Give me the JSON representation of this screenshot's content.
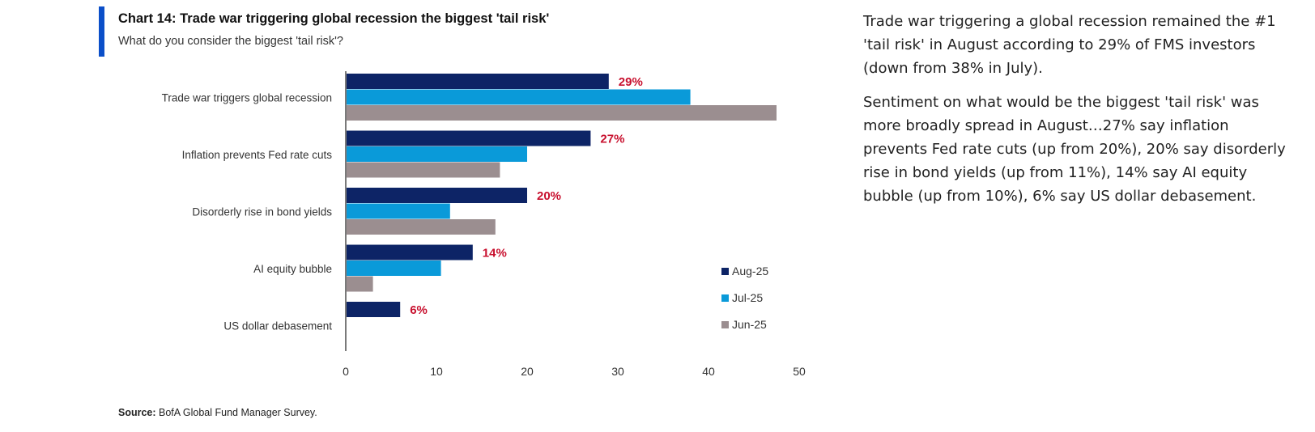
{
  "header": {
    "title": "Chart 14: Trade war triggering global recession the biggest 'tail risk'",
    "subtitle": "What do you consider the biggest 'tail risk'?"
  },
  "source": {
    "label": "Source:",
    "text": " BofA Global Fund Manager Survey."
  },
  "commentary": {
    "paragraphs": [
      "Trade war triggering a global recession remained the #1 'tail risk' in August according to 29% of FMS investors (down from 38% in July).",
      "Sentiment on what would be the biggest 'tail risk' was more broadly spread in August…27% say inflation prevents Fed rate cuts (up from 20%), 20% say disorderly rise in bond yields (up from 11%), 14% say AI equity bubble (up from 10%), 6% say US dollar debasement."
    ]
  },
  "chart_data": {
    "type": "bar",
    "orientation": "horizontal",
    "categories": [
      "Trade war triggers global recession",
      "Inflation prevents Fed rate cuts",
      "Disorderly rise in bond yields",
      "AI equity bubble",
      "US dollar debasement"
    ],
    "series": [
      {
        "name": "Aug-25",
        "color": "#0d2466",
        "values": [
          29,
          27,
          20,
          14,
          6
        ]
      },
      {
        "name": "Jul-25",
        "color": "#0a9ad9",
        "values": [
          38,
          20,
          11.5,
          10.5,
          0
        ]
      },
      {
        "name": "Jun-25",
        "color": "#9b8e90",
        "values": [
          47.5,
          17,
          16.5,
          3,
          0
        ]
      }
    ],
    "data_labels": [
      "29%",
      "27%",
      "20%",
      "14%",
      "6%"
    ],
    "data_label_color": "#c8102e",
    "xlim": [
      0,
      50
    ],
    "xticks": [
      0,
      10,
      20,
      30,
      40,
      50
    ],
    "grid": false,
    "legend_position": "bottom-right"
  }
}
